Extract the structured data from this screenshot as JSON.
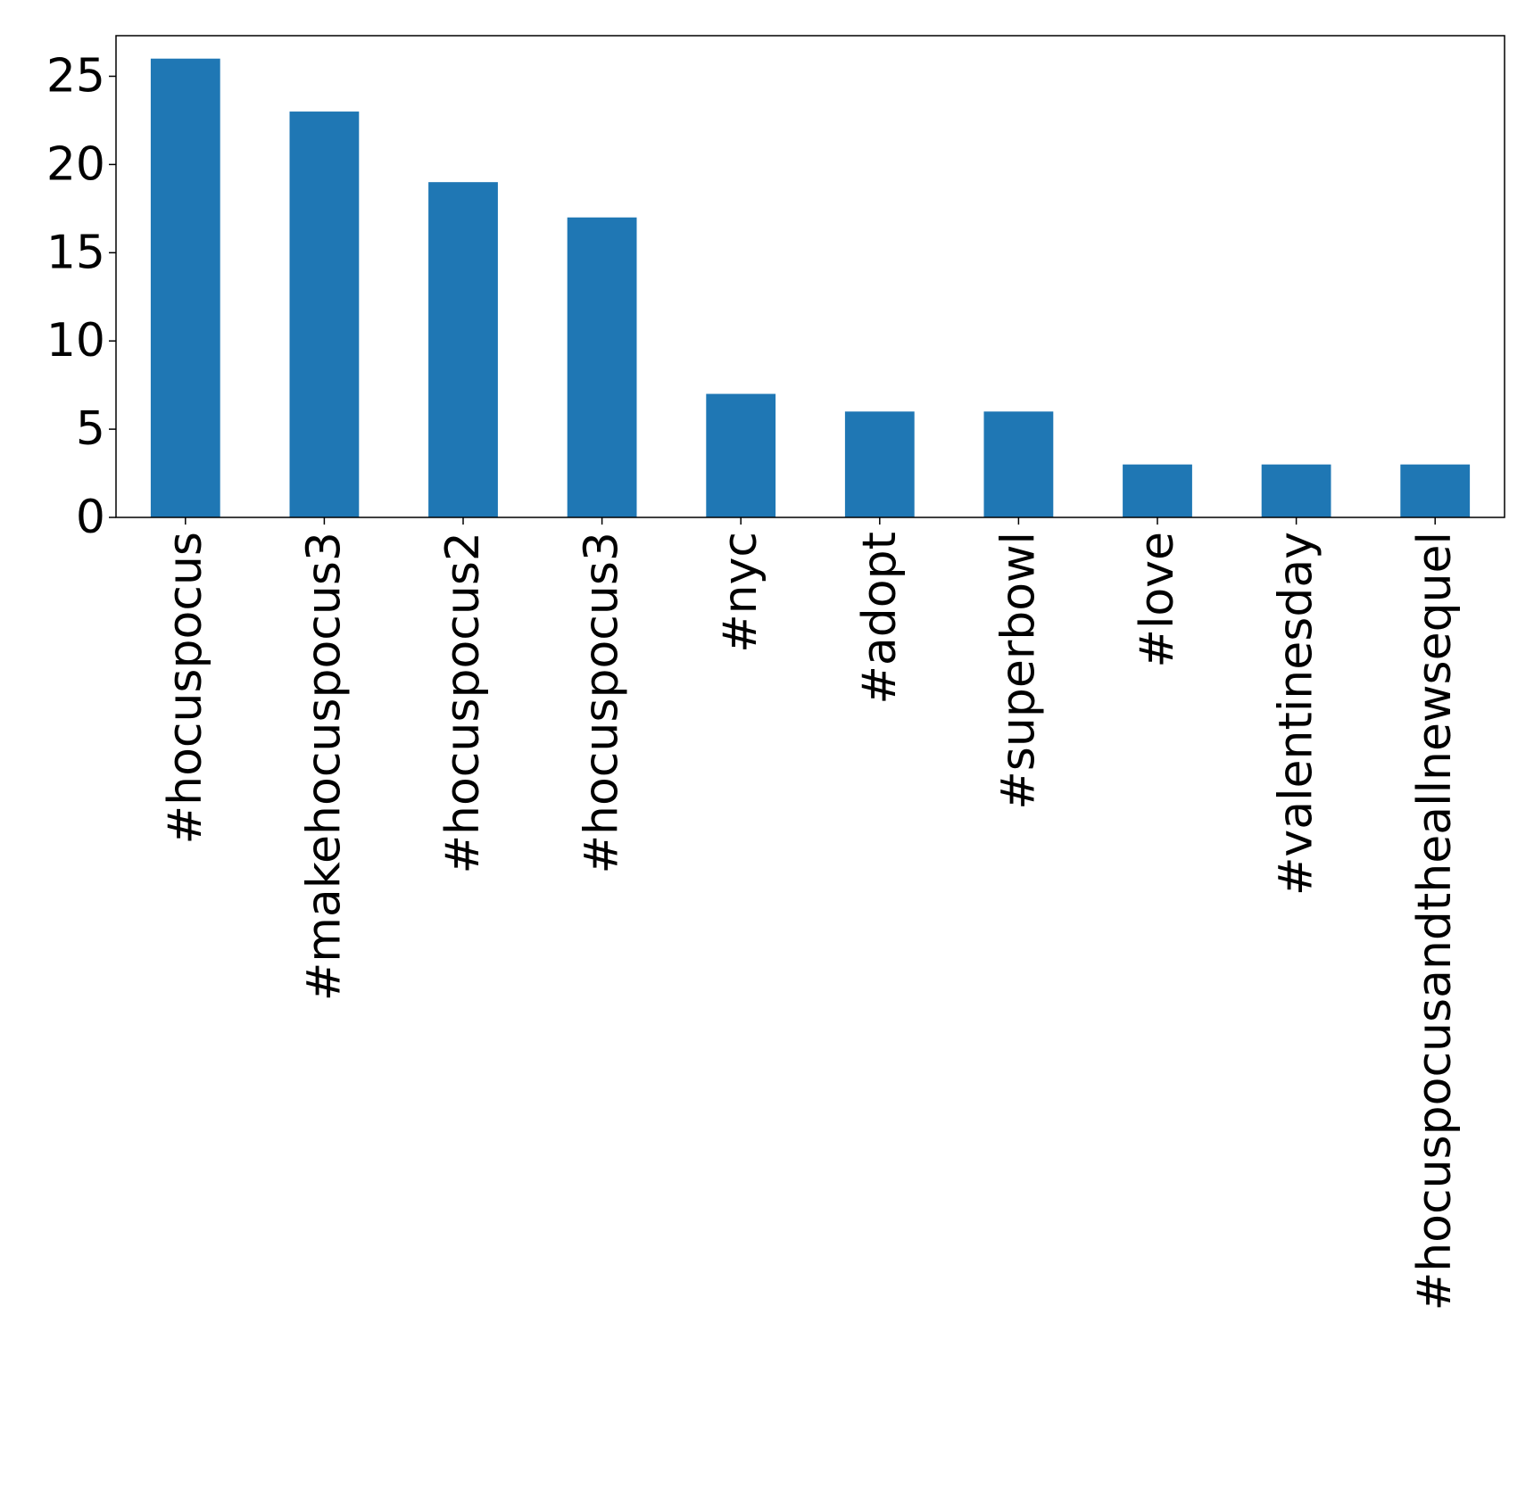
{
  "chart_data": {
    "type": "bar",
    "title": "",
    "xlabel": "",
    "ylabel": "",
    "categories": [
      "#hocuspocus",
      "#makehocuspocus3",
      "#hocuspocus2",
      "#hocuspocus3",
      "#nyc",
      "#adopt",
      "#superbowl",
      "#love",
      "#valentinesday",
      "#hocuspocusandtheallnewsequel"
    ],
    "values": [
      26,
      23,
      19,
      17,
      7,
      6,
      6,
      3,
      3,
      3
    ],
    "ylim": [
      0,
      27.3
    ],
    "yticks": [
      0,
      5,
      10,
      15,
      20,
      25
    ],
    "grid": false,
    "legend": "none",
    "bar_color": "#1f77b4"
  }
}
